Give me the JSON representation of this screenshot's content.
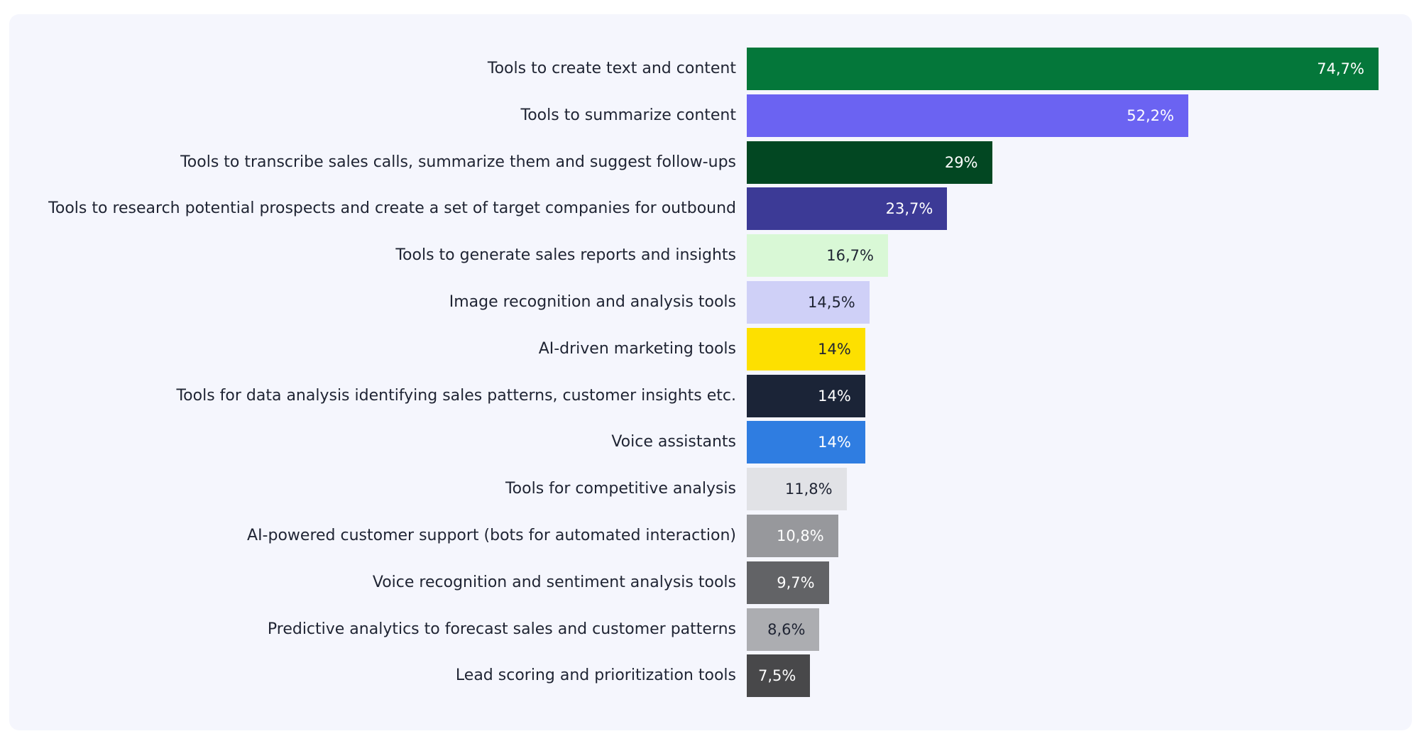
{
  "chart_data": {
    "type": "bar",
    "orientation": "horizontal",
    "title": "",
    "xlabel": "",
    "ylabel": "",
    "xlim": [
      0,
      74.7
    ],
    "grid": false,
    "categories": [
      "Tools to create text and content",
      "Tools to summarize content",
      "Tools to transcribe sales calls, summarize them and suggest follow-ups",
      "Tools to research potential prospects and create a set of target companies for outbound",
      "Tools to generate sales reports and insights",
      "Image recognition and analysis tools",
      "AI-driven marketing tools",
      "Tools for data analysis identifying sales patterns, customer insights etc.",
      "Voice assistants",
      "Tools for competitive analysis",
      "AI-powered customer support (bots for automated interaction)",
      "Voice recognition and sentiment analysis tools",
      "Predictive analytics to forecast sales and customer patterns",
      "Lead scoring and prioritization tools"
    ],
    "values": [
      74.7,
      52.2,
      29,
      23.7,
      16.7,
      14.5,
      14,
      14,
      14,
      11.8,
      10.8,
      9.7,
      8.6,
      7.5
    ],
    "data_labels": [
      "74,7%",
      "52,2%",
      "29%",
      "23,7%",
      "16,7%",
      "14,5%",
      "14%",
      "14%",
      "14%",
      "11,8%",
      "10,8%",
      "9,7%",
      "8,6%",
      "7,5%"
    ],
    "colors": [
      "#04773a",
      "#6b63f2",
      "#024722",
      "#3c3a96",
      "#d9f8d6",
      "#cfd0f7",
      "#fde000",
      "#1b2437",
      "#2f7de1",
      "#e1e2e6",
      "#97989c",
      "#626366",
      "#acadb1",
      "#48484a"
    ],
    "label_colors": [
      "#ffffff",
      "#ffffff",
      "#ffffff",
      "#ffffff",
      "#1f2433",
      "#1f2433",
      "#1f2433",
      "#ffffff",
      "#ffffff",
      "#1f2433",
      "#ffffff",
      "#ffffff",
      "#1f2433",
      "#ffffff"
    ]
  }
}
